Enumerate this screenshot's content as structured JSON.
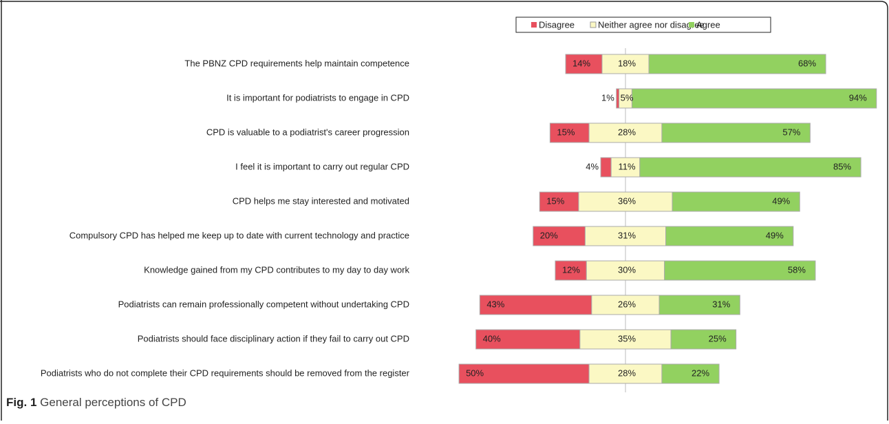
{
  "chart_data": {
    "type": "diverging_bar",
    "categories": [
      "The PBNZ CPD requirements help maintain competence",
      "It is important for podiatrists to engage in CPD",
      "CPD is valuable to a podiatrist's career progression",
      "I feel it is important to carry out regular CPD",
      "CPD helps me stay interested and motivated",
      "Compulsory CPD has helped me keep up to date with current technology and practice",
      "Knowledge gained from my CPD contributes to my day to day work",
      "Podiatrists can remain professionally competent without undertaking CPD",
      "Podiatrists should face disciplinary action if they fail to carry out CPD",
      "Podiatrists who do not complete their CPD requirements should be removed from the register"
    ],
    "series": [
      {
        "name": "Disagree",
        "color": "#e8505e",
        "values": [
          14,
          1,
          15,
          4,
          15,
          20,
          12,
          43,
          40,
          50
        ],
        "value_labels": [
          "14%",
          "1%",
          "15%",
          "4%",
          "15%",
          "20%",
          "12%",
          "43%",
          "40%",
          "50%"
        ]
      },
      {
        "name": "Neither agree nor disagree",
        "color": "#fbf8c4",
        "values": [
          18,
          5,
          28,
          11,
          36,
          31,
          30,
          26,
          35,
          28
        ],
        "value_labels": [
          "18%",
          "5%",
          "28%",
          "11%",
          "36%",
          "31%",
          "30%",
          "26%",
          "35%",
          "28%"
        ]
      },
      {
        "name": "Agree",
        "color": "#92d160",
        "values": [
          68,
          94,
          57,
          85,
          49,
          49,
          58,
          31,
          25,
          22
        ],
        "value_labels": [
          "68%",
          "94%",
          "57%",
          "85%",
          "49%",
          "49%",
          "58%",
          "31%",
          "25%",
          "22%"
        ]
      }
    ],
    "legend": "top",
    "caption": {
      "label": "Fig. 1",
      "text": "General perceptions of CPD"
    }
  }
}
